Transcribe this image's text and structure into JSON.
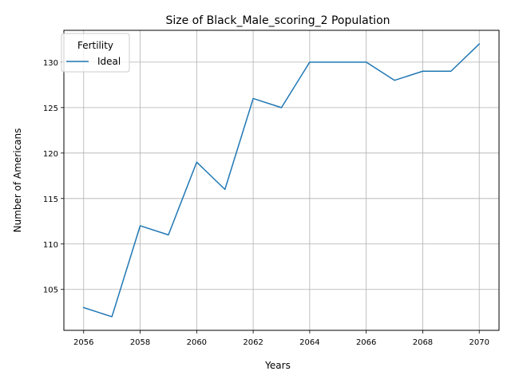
{
  "chart_data": {
    "type": "line",
    "title": "Size of Black_Male_scoring_2 Population",
    "xlabel": "Years",
    "ylabel": "Number of Americans",
    "x": [
      2056,
      2057,
      2058,
      2059,
      2060,
      2061,
      2062,
      2063,
      2064,
      2065,
      2066,
      2067,
      2068,
      2069,
      2070
    ],
    "series": [
      {
        "name": "Ideal",
        "color": "#1f77b4",
        "values": [
          103,
          102,
          112,
          111,
          119,
          116,
          126,
          125,
          130,
          130,
          130,
          128,
          129,
          129,
          132
        ]
      }
    ],
    "xticks": [
      "2056",
      "2058",
      "2060",
      "2062",
      "2064",
      "2066",
      "2068",
      "2070"
    ],
    "yticks": [
      "105",
      "110",
      "115",
      "120",
      "125",
      "130"
    ],
    "xlim": [
      2055.3,
      2070.7
    ],
    "ylim": [
      100.5,
      133.5
    ],
    "grid": true,
    "legend": {
      "title": "Fertility",
      "placement": "upper-left"
    }
  }
}
